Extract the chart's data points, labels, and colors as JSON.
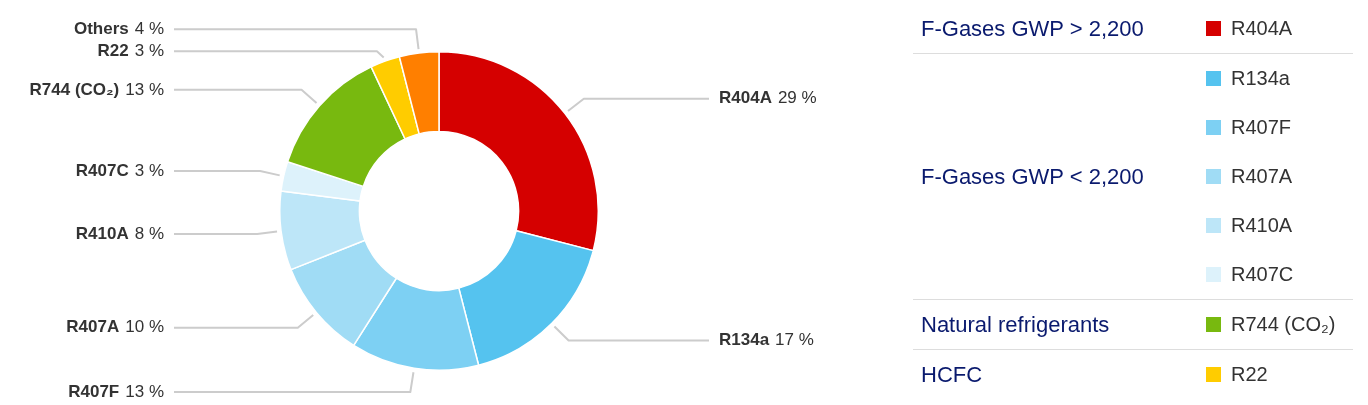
{
  "chart_data": {
    "type": "donut",
    "categories": [
      "R404A",
      "R134a",
      "R407F",
      "R407A",
      "R410A",
      "R407C",
      "R744 (CO₂)",
      "R22",
      "Others"
    ],
    "values": [
      29,
      17,
      13,
      10,
      8,
      3,
      13,
      3,
      4
    ],
    "colors": [
      "#d50000",
      "#55c3ef",
      "#7dd0f3",
      "#a0dcf5",
      "#bde6f8",
      "#ddf2fb",
      "#78b90f",
      "#ffcc00",
      "#ff7f00"
    ],
    "value_labels": [
      "29 %",
      "17 %",
      "13 %",
      "10 %",
      "8 %",
      "3 %",
      "13 %",
      "3 %",
      "4 %"
    ],
    "legend": "right",
    "annotations": [
      {
        "text": "F-Gases GWP > 2,200",
        "x": "R404A"
      },
      {
        "text": "F-Gases GWP < 2,200",
        "x": "R134a"
      },
      {
        "text": "Natural refrigerants",
        "x": "R744 (CO₂)"
      },
      {
        "text": "HCFC",
        "x": "R22"
      }
    ]
  }
}
